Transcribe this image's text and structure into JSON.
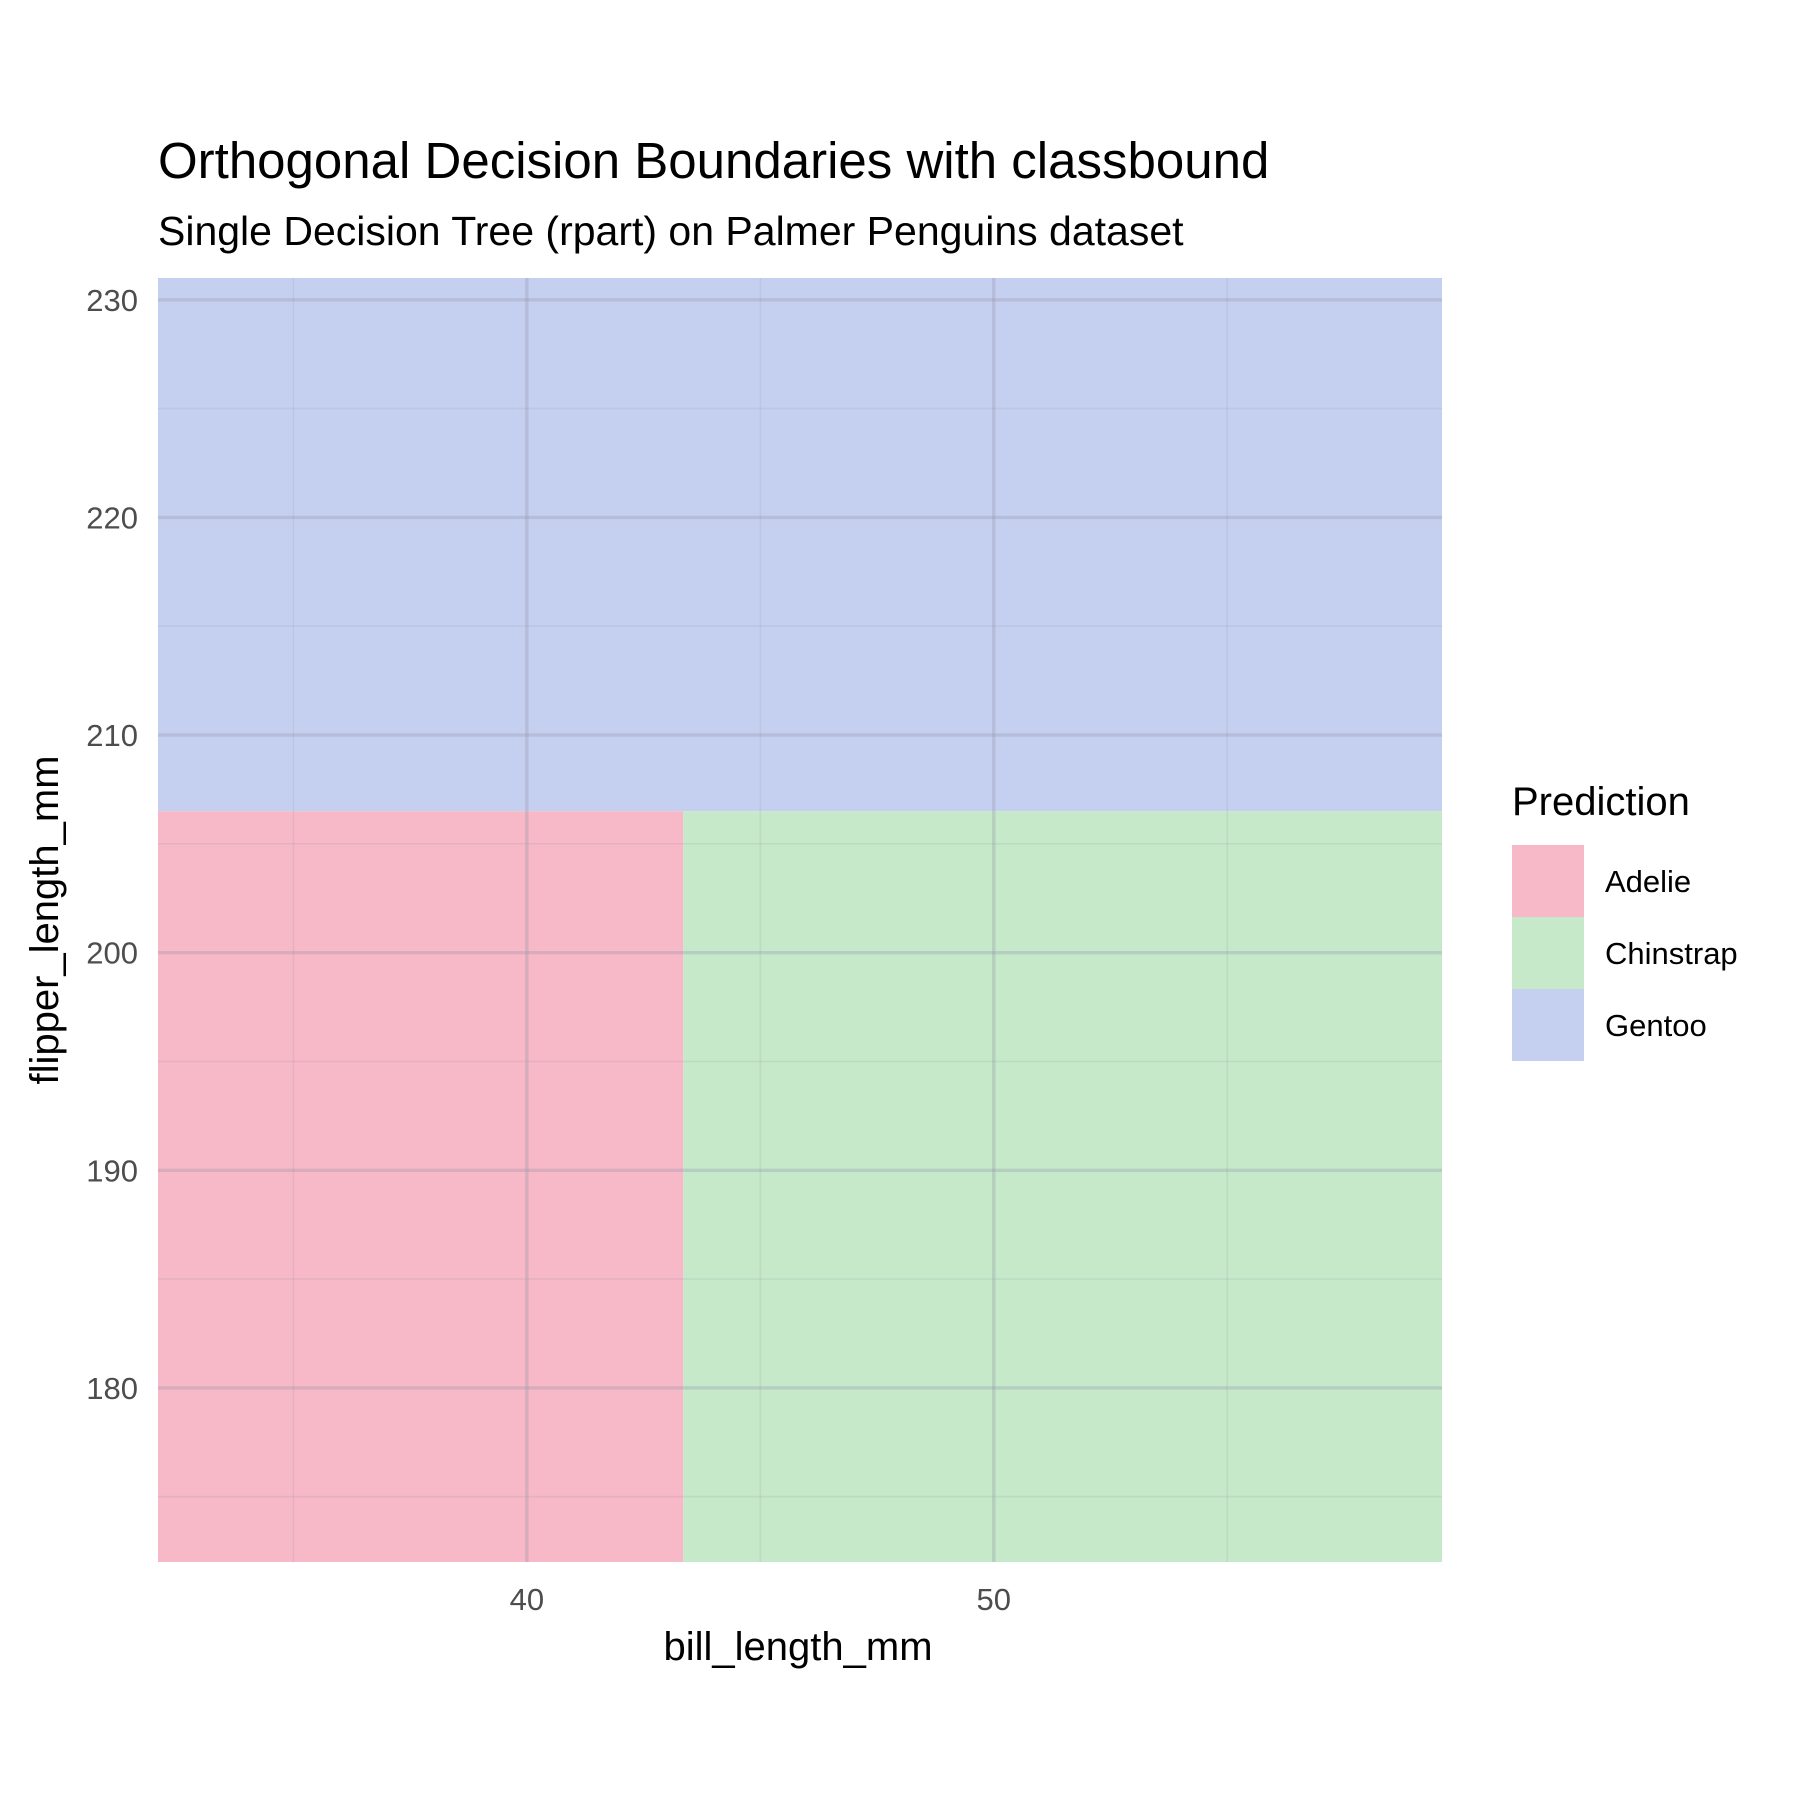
{
  "chart_data": {
    "type": "heatmap",
    "title": "Orthogonal Decision Boundaries with classbound",
    "subtitle": "Single Decision Tree (rpart) on Palmer Penguins dataset",
    "xlabel": "bill_length_mm",
    "ylabel": "flipper_length_mm",
    "xlim": [
      32.1,
      59.6
    ],
    "ylim": [
      172,
      231
    ],
    "x_ticks": [
      40,
      50
    ],
    "y_ticks": [
      180,
      190,
      200,
      210,
      220,
      230
    ],
    "x_minor": [
      35,
      45,
      55
    ],
    "y_minor": [
      175,
      185,
      195,
      205,
      215,
      225
    ],
    "grid": true,
    "legend": {
      "title": "Prediction",
      "position": "right",
      "entries": [
        {
          "label": "Adelie",
          "color": "#f7b8c7"
        },
        {
          "label": "Chinstrap",
          "color": "#c6e9c9"
        },
        {
          "label": "Gentoo",
          "color": "#c5d0f0"
        }
      ]
    },
    "regions": [
      {
        "class": "Gentoo",
        "x": [
          32.1,
          59.6
        ],
        "y": [
          206.5,
          231
        ]
      },
      {
        "class": "Adelie",
        "x": [
          32.1,
          43.35
        ],
        "y": [
          172,
          206.5
        ]
      },
      {
        "class": "Chinstrap",
        "x": [
          43.35,
          59.6
        ],
        "y": [
          172,
          206.5
        ]
      }
    ]
  }
}
